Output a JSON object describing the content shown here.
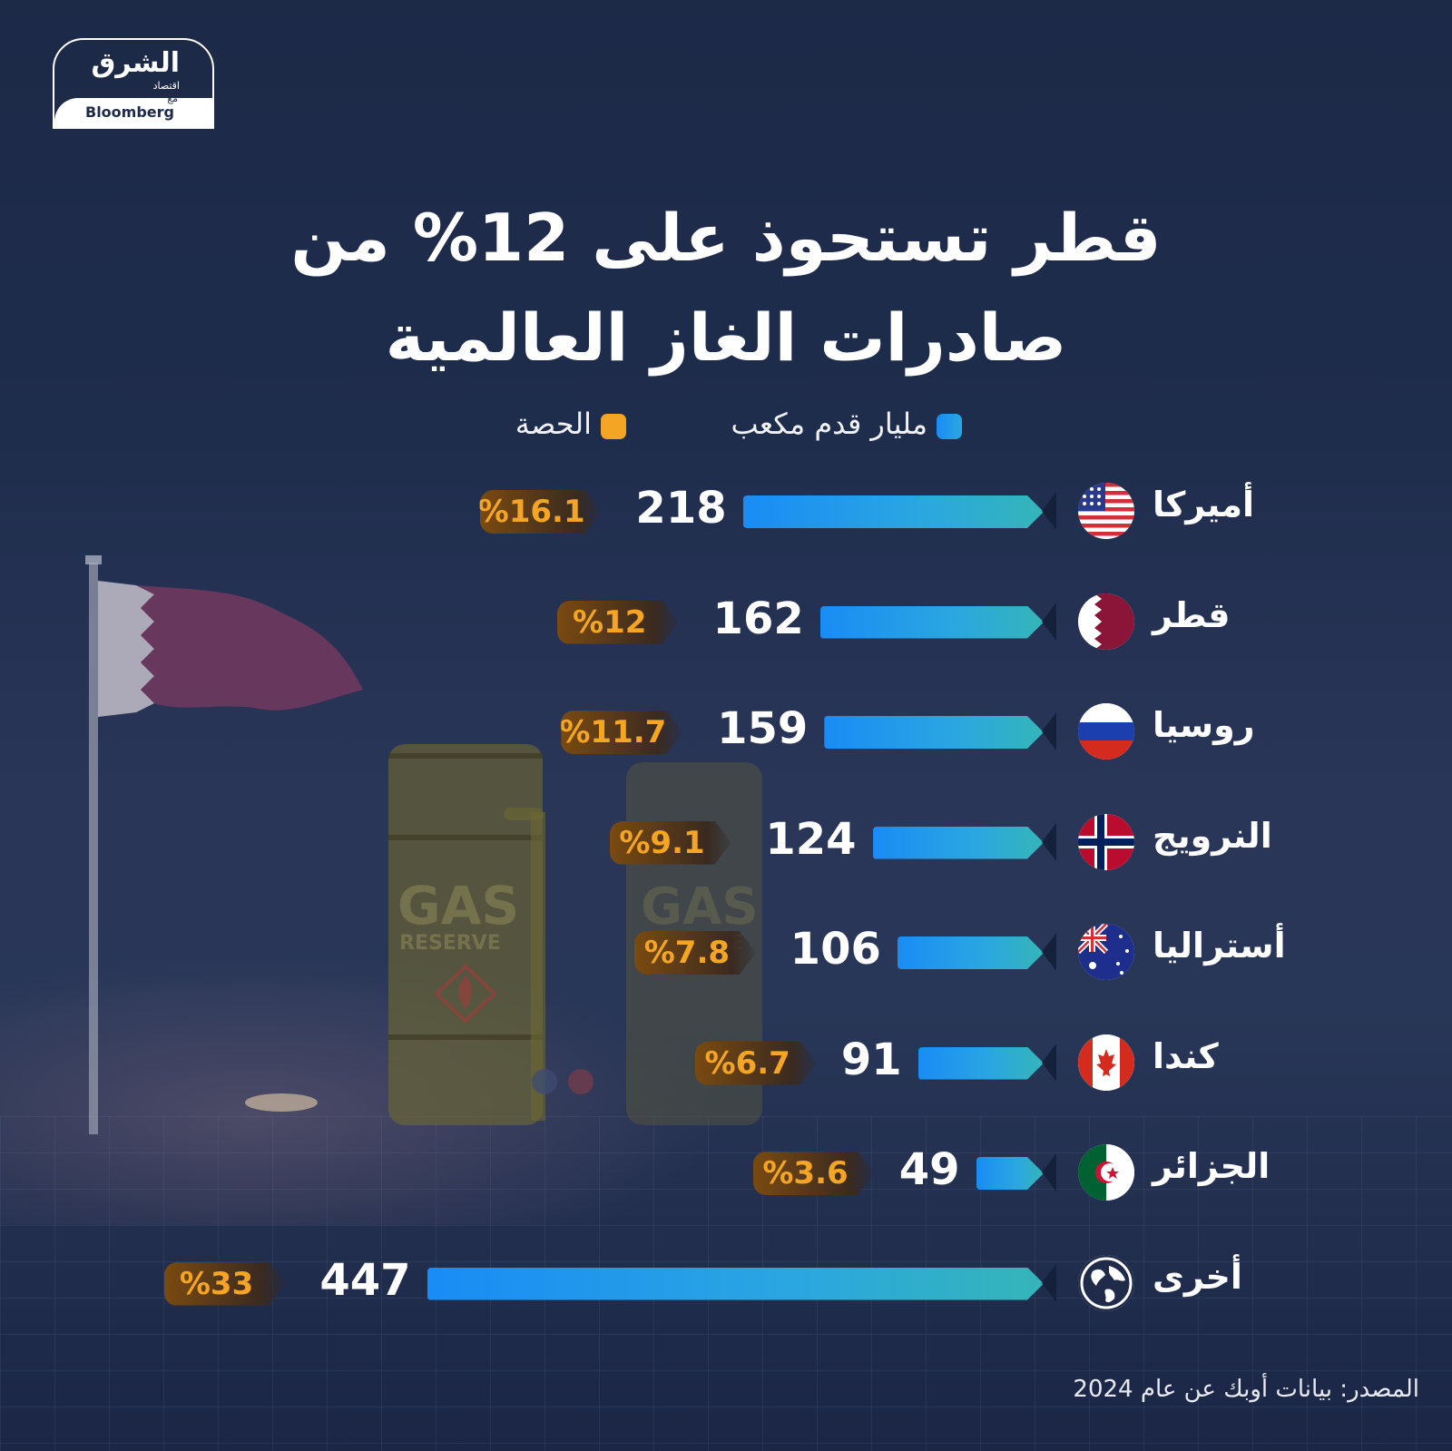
{
  "logo": {
    "main": "الشرق",
    "sub": "اقتصاد",
    "with": "مع",
    "partner": "Bloomberg"
  },
  "title_line1": "قطر تستحوذ على 12% من",
  "title_line2": "صادرات الغاز العالمية",
  "legend": [
    {
      "label": "مليار قدم مكعب",
      "color": "#1a8cf5"
    },
    {
      "label": "الحصة",
      "color": "#f4a523"
    }
  ],
  "source": "المصدر: بيانات أوبك عن عام 2024",
  "background_text": {
    "tank_1": "GAS",
    "tank_2": "RESERVE"
  },
  "chart_data": {
    "type": "bar",
    "orientation": "horizontal",
    "categories": [
      "أميركا",
      "قطر",
      "روسيا",
      "النرويج",
      "أستراليا",
      "كندا",
      "الجزائر",
      "أخرى"
    ],
    "series": [
      {
        "name": "مليار قدم مكعب",
        "values": [
          218,
          162,
          159,
          124,
          106,
          91,
          49,
          447
        ]
      },
      {
        "name": "الحصة",
        "values": [
          16.1,
          12,
          11.7,
          9.1,
          7.8,
          6.7,
          3.6,
          33
        ]
      }
    ],
    "value_labels": [
      "218",
      "162",
      "159",
      "124",
      "106",
      "91",
      "49",
      "447"
    ],
    "share_labels": [
      "%16.1",
      "%12",
      "%11.7",
      "%9.1",
      "%7.8",
      "%6.7",
      "%3.6",
      "%33"
    ],
    "flags": [
      "usa-flag-icon",
      "qatar-flag-icon",
      "russia-flag-icon",
      "norway-flag-icon",
      "australia-flag-icon",
      "canada-flag-icon",
      "algeria-flag-icon",
      "globe-icon"
    ],
    "title": "قطر تستحوذ على 12% من صادرات الغاز العالمية",
    "grid": false,
    "legend_position": "top-center"
  }
}
